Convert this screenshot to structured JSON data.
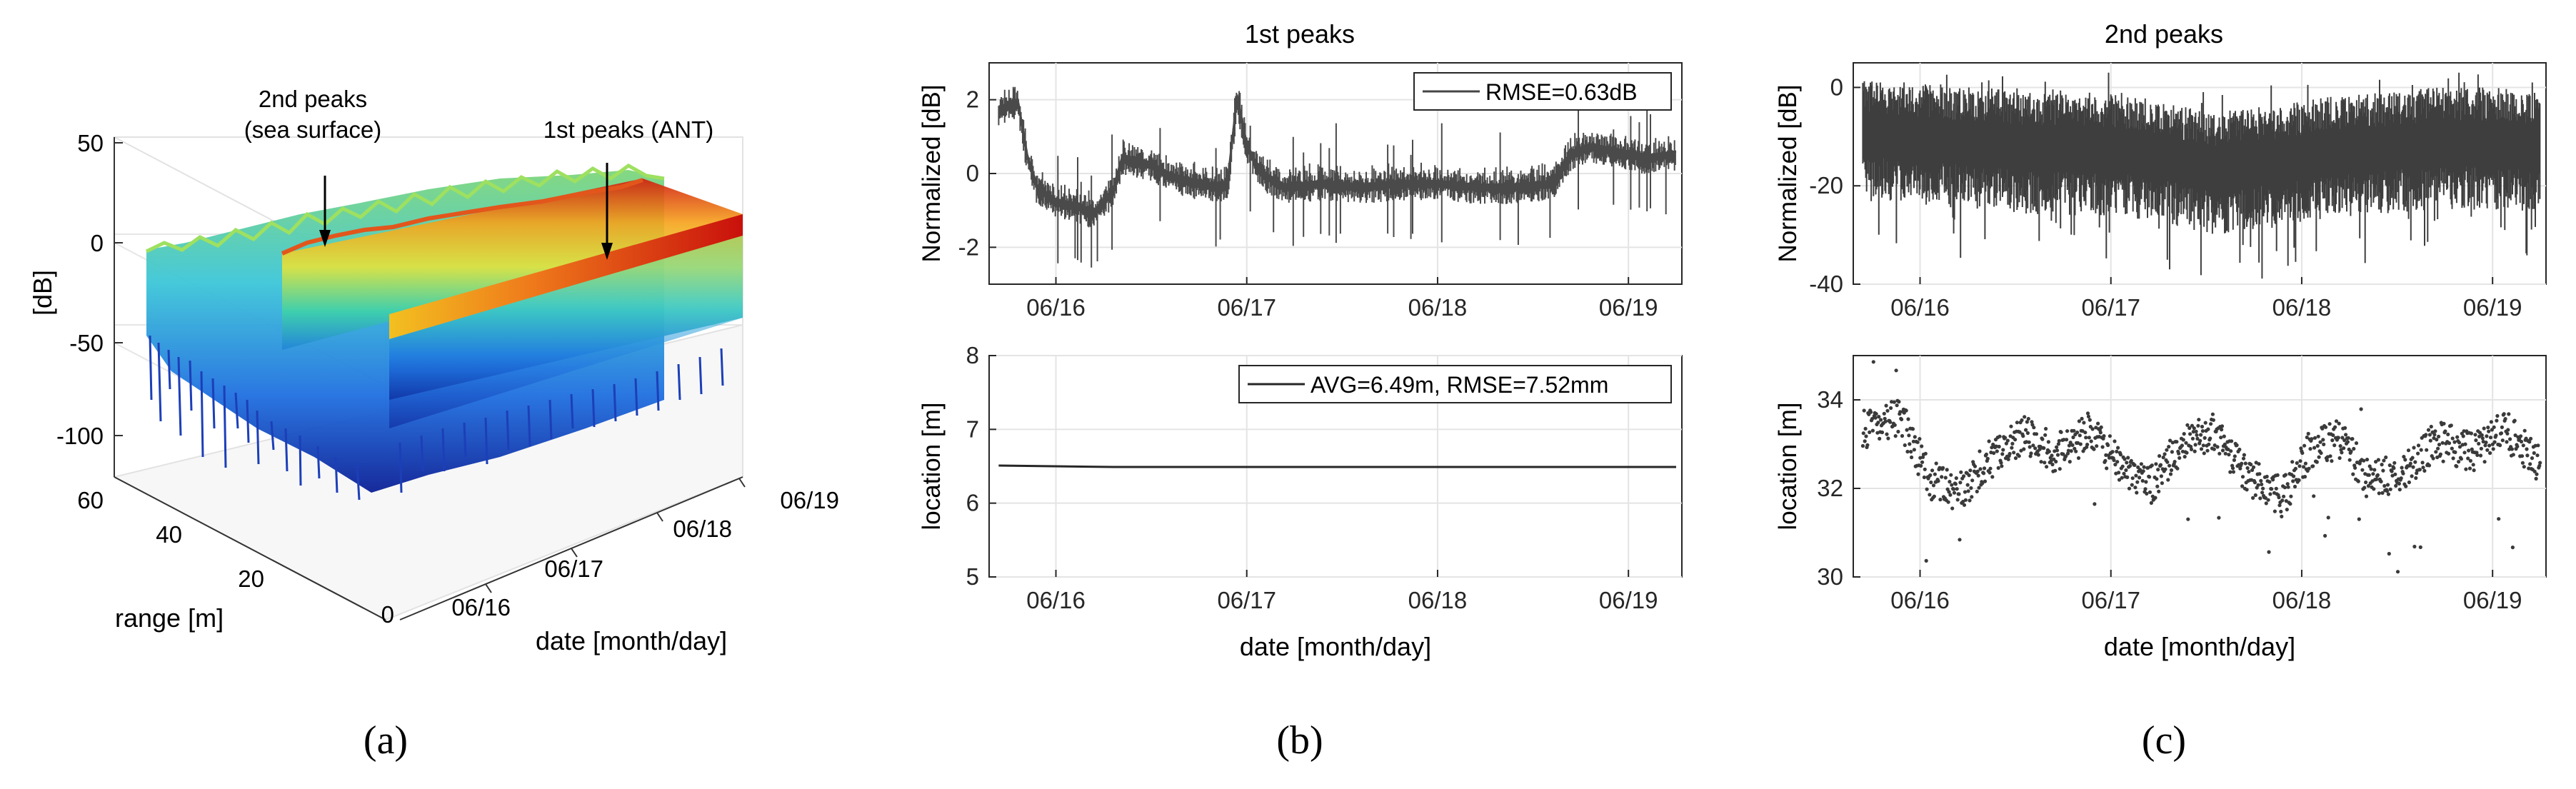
{
  "chart_data": [
    {
      "id": "a",
      "type": "surface3d",
      "caption": "(a)",
      "zlabel": "[dB]",
      "zticks": [
        "50",
        "0",
        "-50",
        "-100"
      ],
      "zlim": [
        -100,
        50
      ],
      "range_label": "range [m]",
      "range_ticks": [
        "60",
        "40",
        "20",
        "0"
      ],
      "date_label": "date [month/day]",
      "date_ticks": [
        "06/16",
        "06/17",
        "06/18",
        "06/19"
      ],
      "annotations": {
        "sea_line1": "2nd peaks",
        "sea_line2": "(sea surface)",
        "ant": "1st peaks (ANT)"
      },
      "series": [
        {
          "name": "1st peaks (ANT)",
          "range_m": 6.5,
          "level_db": 0
        },
        {
          "name": "2nd peaks (sea surface)",
          "range_m": 32.5,
          "level_db": -12
        }
      ]
    },
    {
      "id": "b",
      "type": "line",
      "caption": "(b)",
      "title": "1st peaks",
      "xlabel": "date [month/day]",
      "x_ticks": [
        "06/16",
        "06/17",
        "06/18",
        "06/19"
      ],
      "x_range_days": [
        -0.35,
        3.28
      ],
      "top": {
        "ylabel": "Normalized [dB]",
        "ylim": [
          -3,
          3
        ],
        "yticks": [
          "2",
          "0",
          "-2"
        ],
        "legend": "RMSE=0.63dB",
        "x_days": [
          -0.3,
          -0.25,
          -0.2,
          -0.15,
          -0.1,
          0.0,
          0.1,
          0.2,
          0.3,
          0.35,
          0.5,
          0.6,
          0.75,
          0.85,
          0.9,
          0.95,
          1.0,
          1.05,
          1.1,
          1.2,
          1.4,
          1.6,
          1.8,
          2.0,
          2.2,
          2.4,
          2.6,
          2.7,
          2.8,
          3.0,
          3.1,
          3.25
        ],
        "values": [
          1.8,
          1.9,
          2.0,
          0.5,
          -0.3,
          -0.7,
          -0.8,
          -1.0,
          -0.4,
          0.5,
          0.3,
          0.0,
          -0.2,
          -0.3,
          -0.2,
          2.1,
          0.8,
          0.3,
          0.0,
          -0.3,
          -0.2,
          -0.3,
          -0.2,
          -0.2,
          -0.3,
          -0.3,
          -0.2,
          0.6,
          0.8,
          0.6,
          0.5,
          0.6
        ]
      },
      "bottom": {
        "ylabel": "location [m]",
        "ylim": [
          5,
          8
        ],
        "yticks": [
          "8",
          "7",
          "6",
          "5"
        ],
        "legend": "AVG=6.49m, RMSE=7.52mm",
        "avg_m": 6.49
      }
    },
    {
      "id": "c",
      "type": "line+scatter",
      "caption": "(c)",
      "title": "2nd peaks",
      "xlabel": "date [month/day]",
      "x_ticks": [
        "06/16",
        "06/17",
        "06/18",
        "06/19"
      ],
      "x_range_days": [
        -0.35,
        3.28
      ],
      "top": {
        "ylabel": "Normalized [dB]",
        "ylim": [
          -40,
          5
        ],
        "yticks": [
          "0",
          "-20",
          "-40"
        ],
        "x_days": [
          -0.3,
          0.0,
          0.3,
          0.6,
          0.9,
          1.2,
          1.5,
          1.8,
          2.1,
          2.4,
          2.7,
          3.0,
          3.25
        ],
        "values": [
          -9,
          -10,
          -11,
          -12,
          -12,
          -13,
          -16,
          -15,
          -13,
          -12,
          -11,
          -11,
          -12
        ]
      },
      "bottom": {
        "ylabel": "location [m]",
        "ylim": [
          30,
          35
        ],
        "yticks": [
          "34",
          "32",
          "30"
        ],
        "x_days": [
          -0.3,
          -0.1,
          0.05,
          0.2,
          0.4,
          0.55,
          0.7,
          0.9,
          1.05,
          1.2,
          1.35,
          1.55,
          1.7,
          1.9,
          2.05,
          2.2,
          2.35,
          2.55,
          2.7,
          2.9,
          3.05,
          3.25
        ],
        "values": [
          33.3,
          33.6,
          32.2,
          31.9,
          32.8,
          33.2,
          32.8,
          33.3,
          32.5,
          32.0,
          32.9,
          33.3,
          32.3,
          31.8,
          32.9,
          33.1,
          32.2,
          32.4,
          33.1,
          32.8,
          33.4,
          32.5
        ]
      }
    }
  ]
}
